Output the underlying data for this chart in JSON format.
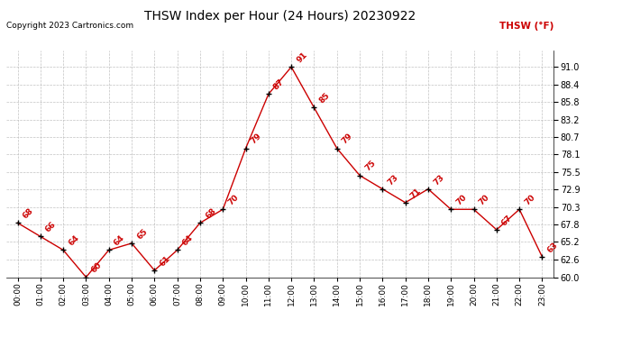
{
  "title": "THSW Index per Hour (24 Hours) 20230922",
  "copyright": "Copyright 2023 Cartronics.com",
  "legend_label": "THSW (°F)",
  "hours": [
    "00:00",
    "01:00",
    "02:00",
    "03:00",
    "04:00",
    "05:00",
    "06:00",
    "07:00",
    "08:00",
    "09:00",
    "10:00",
    "11:00",
    "12:00",
    "13:00",
    "14:00",
    "15:00",
    "16:00",
    "17:00",
    "18:00",
    "19:00",
    "20:00",
    "21:00",
    "22:00",
    "23:00"
  ],
  "values": [
    68,
    66,
    64,
    60,
    64,
    65,
    61,
    64,
    68,
    70,
    79,
    87,
    91,
    85,
    79,
    75,
    73,
    71,
    73,
    70,
    70,
    67,
    70,
    63
  ],
  "ylim_min": 60.0,
  "ylim_max": 93.4,
  "yticks": [
    60.0,
    62.6,
    65.2,
    67.8,
    70.3,
    72.9,
    75.5,
    78.1,
    80.7,
    83.2,
    85.8,
    88.4,
    91.0
  ],
  "line_color": "#cc0000",
  "marker_color": "#000000",
  "label_color": "#cc0000",
  "bg_color": "#ffffff",
  "grid_color": "#bbbbbb",
  "title_color": "#000000",
  "copyright_color": "#000000",
  "legend_color": "#cc0000"
}
